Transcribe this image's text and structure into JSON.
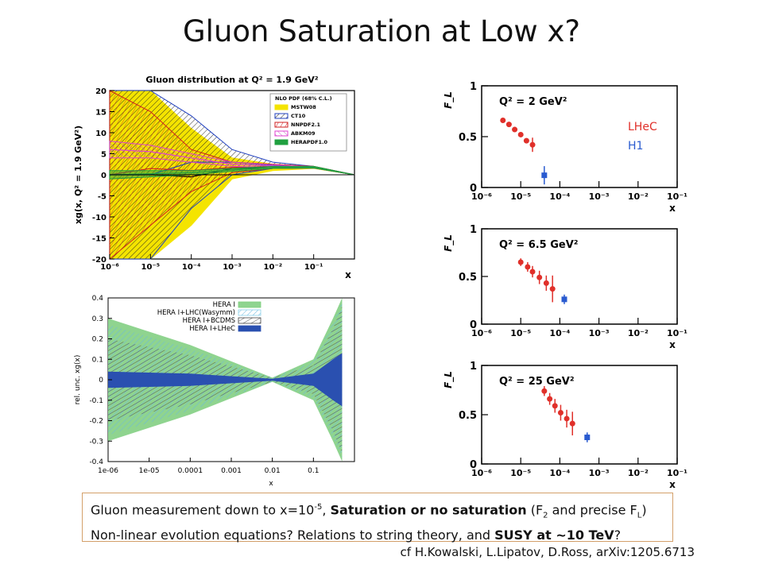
{
  "slide": {
    "title": "Gluon Saturation at Low x?",
    "caption_line1_a": "Gluon measurement  down to x=10",
    "caption_line1_sup": "-5",
    "caption_line1_b": ", ",
    "caption_line1_bold": "Saturation or no saturation",
    "caption_line1_c": " (F",
    "caption_line1_sub1": "2",
    "caption_line1_d": " and precise F",
    "caption_line1_sub2": "L",
    "caption_line1_e": ")",
    "caption_line2_a": "Non-linear evolution equations?  Relations to string theory, and ",
    "caption_line2_bold": "SUSY at ~10 TeV",
    "caption_line2_b": "?",
    "citation": "cf H.Kowalski, L.Lipatov, D.Ross, arXiv:1205.6713",
    "lhec_label": "LHeC",
    "h1_label": "H1",
    "colors": {
      "lhec": "#e0302a",
      "h1": "#2a5bd0"
    }
  },
  "chart_data": [
    {
      "type": "area",
      "title": "Gluon distribution at Q² = 1.9 GeV²",
      "ylabel": "xg(x, Q² = 1.9 GeV²)",
      "xlabel": "x",
      "xscale": "log",
      "xlim": [
        1e-06,
        1
      ],
      "ylim": [
        -20,
        20
      ],
      "xticks": [
        "10⁻⁶",
        "10⁻⁵",
        "10⁻⁴",
        "10⁻³",
        "10⁻²",
        "10⁻¹"
      ],
      "yticks": [
        20,
        15,
        10,
        5,
        0,
        -5,
        -10,
        -15,
        -20
      ],
      "legend_title": "NLO PDF (68% C.L.)",
      "legend": [
        "MSTW08",
        "CT10",
        "NNPDF2.1",
        "ABKM09",
        "HERAPDF1.0"
      ],
      "legend_position": "top-right",
      "series": [
        {
          "name": "MSTW08",
          "color": "#f4e400",
          "x": [
            1e-06,
            1e-05,
            0.0001,
            0.001,
            0.01,
            0.1,
            1
          ],
          "upper": [
            20,
            20,
            11,
            4,
            2.5,
            2,
            0
          ],
          "lower": [
            -20,
            -20,
            -12,
            -1,
            1,
            1.5,
            0
          ]
        },
        {
          "name": "CT10",
          "color": "#2040c0",
          "x": [
            1e-06,
            1e-05,
            0.0001,
            0.001,
            0.01,
            0.1,
            1
          ],
          "upper": [
            20,
            20,
            14,
            6,
            3,
            2,
            0
          ],
          "lower": [
            -20,
            -20,
            -8,
            0,
            1.5,
            1.6,
            0
          ]
        },
        {
          "name": "NNPDF2.1",
          "color": "#d02020",
          "x": [
            1e-06,
            1e-05,
            0.0001,
            0.001,
            0.01,
            0.1,
            1
          ],
          "upper": [
            20,
            15,
            6,
            3,
            2.5,
            2,
            0
          ],
          "lower": [
            -20,
            -12,
            -4,
            0.5,
            1.5,
            1.6,
            0
          ]
        },
        {
          "name": "ABKM09",
          "color": "#e040d0",
          "x": [
            1e-06,
            1e-05,
            0.0001,
            0.001,
            0.01,
            0.1,
            1
          ],
          "upper": [
            8,
            7,
            5,
            3,
            2.4,
            1.9,
            0
          ],
          "lower": [
            4,
            4,
            3,
            2,
            1.8,
            1.7,
            0
          ]
        },
        {
          "name": "HERAPDF1.0",
          "color": "#20a040",
          "x": [
            1e-06,
            1e-05,
            0.0001,
            0.001,
            0.01,
            0.1,
            1
          ],
          "upper": [
            1,
            1,
            1,
            1.5,
            2,
            2,
            0
          ],
          "lower": [
            -1,
            -0.5,
            0,
            0.8,
            1.5,
            1.6,
            0
          ]
        }
      ]
    },
    {
      "type": "area",
      "ylabel": "rel. unc. xg(x)",
      "xlabel": "x",
      "xscale": "log",
      "xlim": [
        1e-06,
        1
      ],
      "ylim": [
        -0.4,
        0.4
      ],
      "xticks": [
        "1e-06",
        "1e-05",
        "0.0001",
        "0.001",
        "0.01",
        "0.1"
      ],
      "yticks": [
        "0.4",
        "0.3",
        "0.2",
        "0.1",
        "0",
        "-0.1",
        "-0.2",
        "-0.3",
        "-0.4"
      ],
      "legend": [
        "HERA I",
        "HERA I+LHC(Wasymm)",
        "HERA I+BCDMS",
        "HERA I+LHeC"
      ],
      "legend_position": "top-left",
      "series": [
        {
          "name": "HERA I",
          "color": "#7ccf7c",
          "x": [
            1e-06,
            0.0001,
            0.01,
            0.1,
            0.3,
            0.5
          ],
          "upper": [
            0.3,
            0.17,
            0.01,
            0.1,
            0.3,
            0.4
          ],
          "lower": [
            -0.3,
            -0.17,
            -0.01,
            -0.1,
            -0.3,
            -0.4
          ]
        },
        {
          "name": "HERA I+LHC(Wasymm)",
          "color": "#8ad0e8",
          "x": [
            1e-06,
            0.0001,
            0.01,
            0.1,
            0.3,
            0.5
          ],
          "upper": [
            0.27,
            0.15,
            0.01,
            0.09,
            0.28,
            0.38
          ],
          "lower": [
            -0.27,
            -0.15,
            -0.01,
            -0.09,
            -0.28,
            -0.38
          ]
        },
        {
          "name": "HERA I+BCDMS",
          "color": "#404040",
          "x": [
            1e-06,
            0.0001,
            0.01,
            0.1,
            0.3,
            0.5
          ],
          "upper": [
            0.2,
            0.12,
            0.01,
            0.07,
            0.25,
            0.36
          ],
          "lower": [
            -0.2,
            -0.12,
            -0.01,
            -0.07,
            -0.25,
            -0.36
          ]
        },
        {
          "name": "HERA I+LHeC",
          "color": "#2a50b0",
          "x": [
            1e-06,
            0.0001,
            0.01,
            0.1,
            0.3,
            0.5
          ],
          "upper": [
            0.04,
            0.03,
            0.005,
            0.03,
            0.1,
            0.13
          ],
          "lower": [
            -0.04,
            -0.03,
            -0.005,
            -0.03,
            -0.1,
            -0.13
          ]
        }
      ]
    },
    {
      "type": "scatter",
      "annotation": "Q² = 2 GeV²",
      "ylabel": "F_L",
      "xlabel": "x",
      "xscale": "log",
      "xlim": [
        1e-06,
        0.1
      ],
      "ylim": [
        0,
        1
      ],
      "xticks": [
        "10⁻⁶",
        "10⁻⁵",
        "10⁻⁴",
        "10⁻³",
        "10⁻²",
        "10⁻¹"
      ],
      "yticks": [
        "1",
        "0.5",
        "0"
      ],
      "series": [
        {
          "name": "LHeC",
          "color": "#e0302a",
          "x": [
            3.5e-06,
            5e-06,
            7e-06,
            1e-05,
            1.4e-05,
            2e-05
          ],
          "y": [
            0.66,
            0.62,
            0.57,
            0.52,
            0.46,
            0.42
          ],
          "err": [
            0.015,
            0.015,
            0.02,
            0.02,
            0.025,
            0.07
          ]
        },
        {
          "name": "H1",
          "color": "#2a5bd0",
          "x": [
            4e-05
          ],
          "y": [
            0.12
          ],
          "err": [
            0.09
          ]
        }
      ]
    },
    {
      "type": "scatter",
      "annotation": "Q² = 6.5 GeV²",
      "ylabel": "F_L",
      "xlabel": "x",
      "xscale": "log",
      "xlim": [
        1e-06,
        0.1
      ],
      "ylim": [
        0,
        1
      ],
      "xticks": [
        "10⁻⁶",
        "10⁻⁵",
        "10⁻⁴",
        "10⁻³",
        "10⁻²",
        "10⁻¹"
      ],
      "yticks": [
        "1",
        "0.5",
        "0"
      ],
      "series": [
        {
          "name": "LHeC",
          "color": "#e0302a",
          "x": [
            1e-05,
            1.5e-05,
            2e-05,
            3e-05,
            4.5e-05,
            6.5e-05
          ],
          "y": [
            0.65,
            0.6,
            0.55,
            0.49,
            0.43,
            0.37
          ],
          "err": [
            0.04,
            0.05,
            0.06,
            0.07,
            0.08,
            0.14
          ]
        },
        {
          "name": "H1",
          "color": "#2a5bd0",
          "x": [
            0.00013
          ],
          "y": [
            0.26
          ],
          "err": [
            0.05
          ]
        }
      ]
    },
    {
      "type": "scatter",
      "annotation": "Q² = 25 GeV²",
      "ylabel": "F_L",
      "xlabel": "x",
      "xscale": "log",
      "xlim": [
        1e-06,
        0.1
      ],
      "ylim": [
        0,
        1
      ],
      "xticks": [
        "10⁻⁶",
        "10⁻⁵",
        "10⁻⁴",
        "10⁻³",
        "10⁻²",
        "10⁻¹"
      ],
      "yticks": [
        "1",
        "0.5",
        "0"
      ],
      "series": [
        {
          "name": "LHeC",
          "color": "#e0302a",
          "x": [
            4e-05,
            5.5e-05,
            7.5e-05,
            0.000105,
            0.00015,
            0.00021
          ],
          "y": [
            0.74,
            0.66,
            0.59,
            0.52,
            0.46,
            0.41
          ],
          "err": [
            0.05,
            0.06,
            0.07,
            0.08,
            0.09,
            0.12
          ]
        },
        {
          "name": "H1",
          "color": "#2a5bd0",
          "x": [
            0.0005
          ],
          "y": [
            0.27
          ],
          "err": [
            0.05
          ]
        }
      ]
    }
  ]
}
